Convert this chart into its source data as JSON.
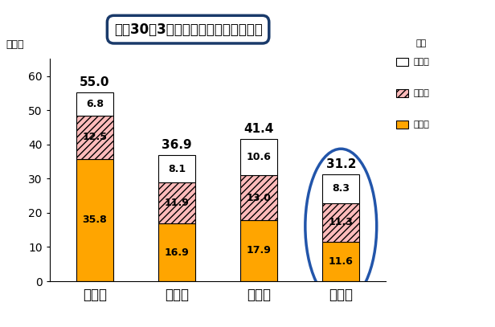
{
  "title": "平成30年3月新規学卒就職者の離職率",
  "categories": [
    "中学卑",
    "高校卑",
    "短大卑",
    "大学卑"
  ],
  "year1": [
    35.8,
    16.9,
    17.9,
    11.6
  ],
  "year2": [
    12.5,
    11.9,
    13.0,
    11.3
  ],
  "year3": [
    6.8,
    8.1,
    10.6,
    8.3
  ],
  "totals": [
    "55.0",
    "36.9",
    "41.4",
    "31.2"
  ],
  "color_year1": "#FFA500",
  "color_year2_fill": "#FFBBBB",
  "color_year2_hatch": "////",
  "color_year3": "#FFFFFF",
  "bar_edge_color": "#000000",
  "ylabel": "（％）",
  "ylim": [
    0,
    65
  ],
  "yticks": [
    0,
    10,
    20,
    30,
    40,
    50,
    60
  ],
  "highlight_bar_index": 3,
  "ellipse_color": "#2255AA",
  "title_box_color": "#1A3A6A",
  "background_color": "#FFFFFF",
  "legend_gou": "合計",
  "legend_3": "３年目",
  "legend_2": "２年目",
  "legend_1": "１年目"
}
